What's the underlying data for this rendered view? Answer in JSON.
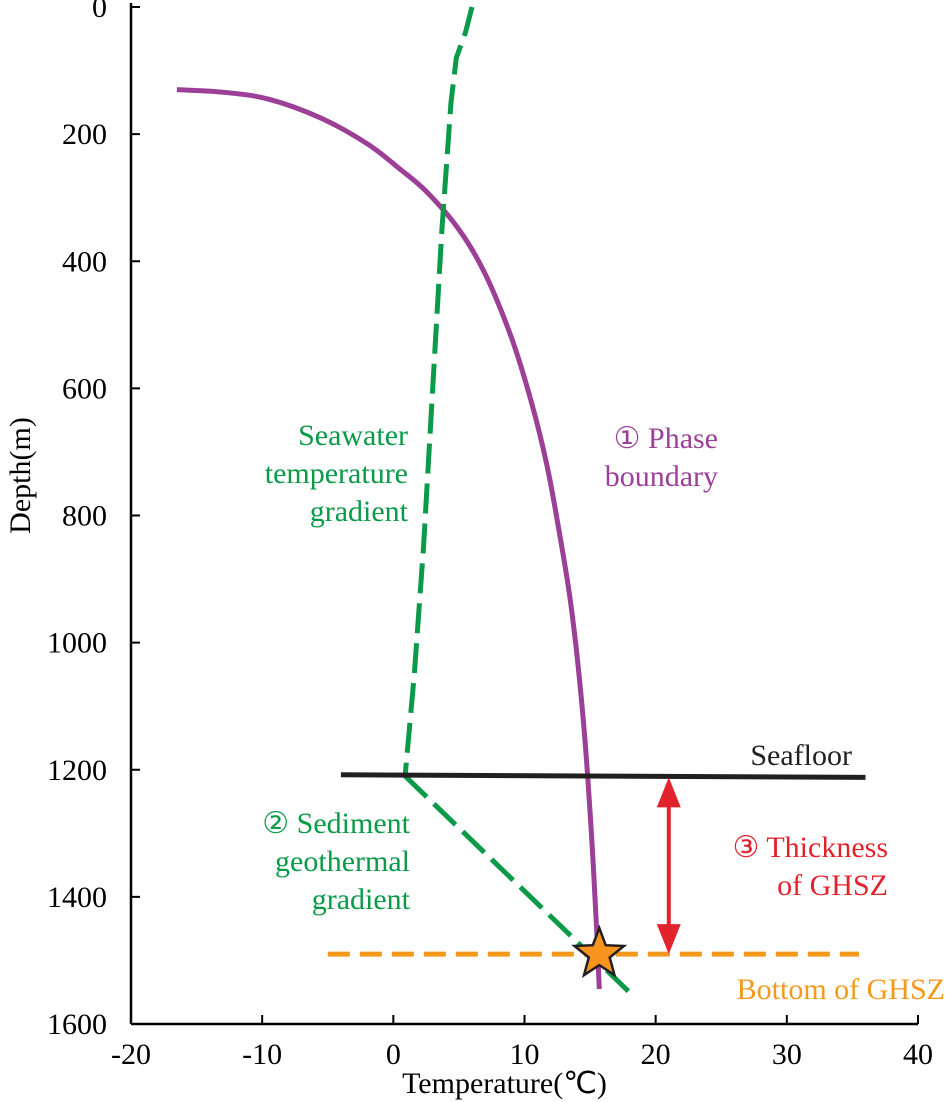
{
  "chart_data": {
    "type": "line",
    "xlabel": "Temperature(℃)",
    "ylabel": "Depth(m)",
    "xlim": [
      -20,
      40
    ],
    "ylim": [
      0,
      1600
    ],
    "y_inverted": true,
    "x_ticks": [
      "-20",
      "-10",
      "0",
      "10",
      "20",
      "30",
      "40"
    ],
    "y_ticks": [
      "0",
      "200",
      "400",
      "600",
      "800",
      "1000",
      "1200",
      "1400",
      "1600"
    ],
    "series": [
      {
        "name": "① Phase boundary",
        "color": "#9b3f97",
        "style": "solid",
        "x": [
          -16.5,
          -13,
          -9.5,
          -5.5,
          -2,
          0.5,
          2.5,
          5,
          7,
          9,
          10.5,
          11.7,
          12.6,
          13.4,
          14,
          14.6,
          15.1,
          15.5,
          15.7
        ],
        "y": [
          130,
          134,
          145,
          175,
          215,
          255,
          290,
          350,
          420,
          520,
          620,
          720,
          820,
          920,
          1020,
          1150,
          1300,
          1450,
          1545
        ]
      },
      {
        "name": "Seawater temperature gradient",
        "color": "#0a9a48",
        "style": "dashed",
        "x": [
          6,
          5.5,
          4.8,
          4.4,
          3.7,
          3.0,
          2.3,
          1.6,
          0.9
        ],
        "y": [
          0,
          40,
          80,
          150,
          350,
          600,
          850,
          1050,
          1210
        ]
      },
      {
        "name": "② Sediment geothermal gradient",
        "color": "#0a9a48",
        "style": "dashed",
        "x": [
          0.9,
          18
        ],
        "y": [
          1210,
          1550
        ]
      },
      {
        "name": "Seafloor",
        "color": "#231f20",
        "style": "solid",
        "x": [
          -4,
          36
        ],
        "y": [
          1208,
          1212
        ]
      },
      {
        "name": "Bottom of GHSZ",
        "color": "#f39a1e",
        "style": "dashed",
        "x": [
          -5,
          35.5
        ],
        "y": [
          1490,
          1490
        ]
      }
    ],
    "annotations": {
      "seawater": [
        "Seawater",
        "temperature",
        "gradient"
      ],
      "phase": [
        "① Phase",
        "boundary"
      ],
      "seafloor": "Seafloor",
      "sediment": [
        "② Sediment",
        "geothermal",
        "gradient"
      ],
      "thickness": [
        "③ Thickness",
        "of GHSZ"
      ],
      "bottom": "Bottom of GHSZ"
    },
    "thickness_arrow": {
      "x": 21,
      "y_top": 1212,
      "y_bottom": 1490,
      "color": "#e3232c"
    },
    "star_marker": {
      "x": 15.7,
      "y": 1490,
      "color": "#f7941d"
    }
  }
}
